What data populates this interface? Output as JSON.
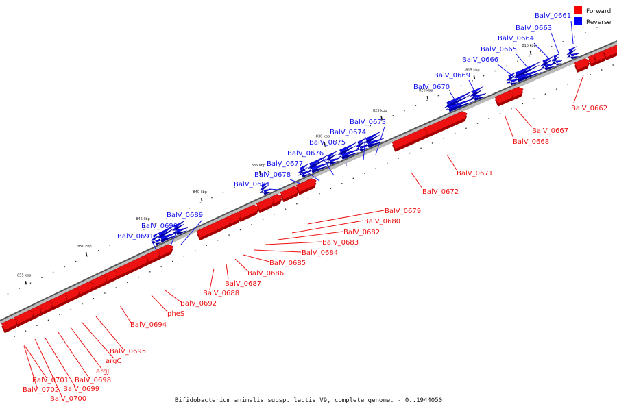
{
  "caption": "Bifidobacterium animalis subsp. lactis V9, complete genome. - 0..1944050",
  "legend": {
    "forward_label": "Forward",
    "reverse_label": "Reverse",
    "forward_color": "#ff0000",
    "reverse_color": "#0000ff"
  },
  "colors": {
    "forward": "#ee1111",
    "forward_dark": "#a00000",
    "reverse": "#1111ee",
    "reverse_dark": "#0000a0",
    "backbone": "#555555"
  },
  "kbp_ticks": [
    "810 kbp",
    "815 kbp",
    "820 kbp",
    "825 kbp",
    "830 kbp",
    "835 kbp",
    "840 kbp",
    "845 kbp",
    "850 kbp",
    "855 kbp"
  ],
  "genes": {
    "forward": [
      "BalV_0662",
      "BalV_0667",
      "BalV_0668",
      "BalV_0671",
      "BalV_0672",
      "BalV_0679",
      "BalV_0680",
      "BalV_0682",
      "BalV_0683",
      "BalV_0684",
      "BalV_0685",
      "BalV_0686",
      "BalV_0687",
      "BalV_0688",
      "BalV_0692",
      "pheS",
      "BalV_0694",
      "BalV_0695",
      "argC",
      "argJ",
      "BalV_0698",
      "BalV_0699",
      "BalV_0700",
      "BalV_0701",
      "BalV_0702"
    ],
    "reverse": [
      "BalV_0661",
      "BalV_0663",
      "BalV_0664",
      "BalV_0665",
      "BalV_0666",
      "BalV_0669",
      "BalV_0670",
      "BalV_0673",
      "BalV_0674",
      "BalV_0675",
      "BalV_0676",
      "BalV_0677",
      "BalV_0678",
      "BalV_0681",
      "BalV_0689",
      "BalV_0690",
      "BalV_0691"
    ]
  }
}
